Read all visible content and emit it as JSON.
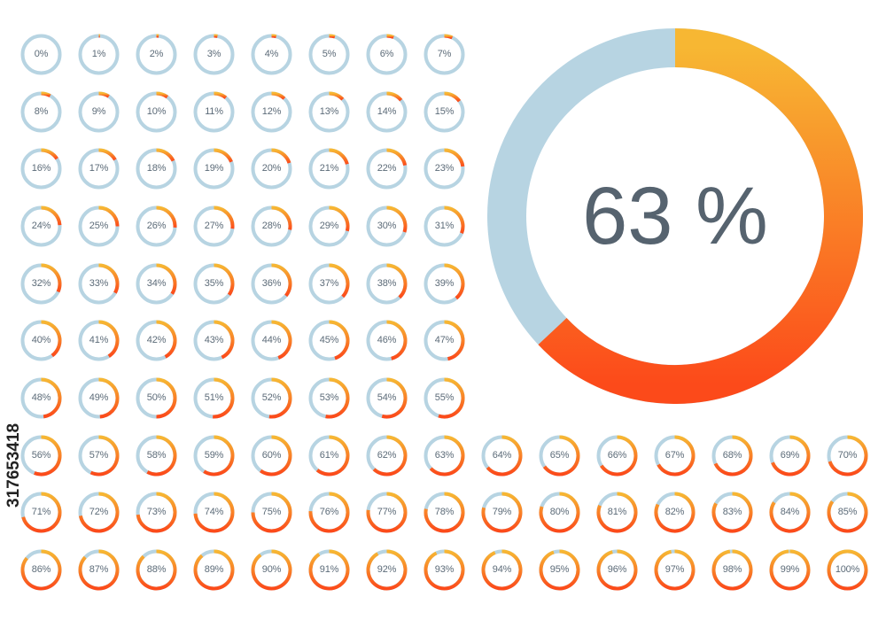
{
  "colors": {
    "track": "#b7d4e2",
    "progress_start": "#f7b733",
    "progress_end": "#fc4a1a",
    "text": "#5c6b78",
    "big_text": "#56636f"
  },
  "featured": {
    "value": 63,
    "label": "63 %"
  },
  "rings": [
    {
      "value": 0,
      "label": "0%"
    },
    {
      "value": 1,
      "label": "1%"
    },
    {
      "value": 2,
      "label": "2%"
    },
    {
      "value": 3,
      "label": "3%"
    },
    {
      "value": 4,
      "label": "4%"
    },
    {
      "value": 5,
      "label": "5%"
    },
    {
      "value": 6,
      "label": "6%"
    },
    {
      "value": 7,
      "label": "7%"
    },
    {
      "value": 8,
      "label": "8%"
    },
    {
      "value": 9,
      "label": "9%"
    },
    {
      "value": 10,
      "label": "10%"
    },
    {
      "value": 11,
      "label": "11%"
    },
    {
      "value": 12,
      "label": "12%"
    },
    {
      "value": 13,
      "label": "13%"
    },
    {
      "value": 14,
      "label": "14%"
    },
    {
      "value": 15,
      "label": "15%"
    },
    {
      "value": 16,
      "label": "16%"
    },
    {
      "value": 17,
      "label": "17%"
    },
    {
      "value": 18,
      "label": "18%"
    },
    {
      "value": 19,
      "label": "19%"
    },
    {
      "value": 20,
      "label": "20%"
    },
    {
      "value": 21,
      "label": "21%"
    },
    {
      "value": 22,
      "label": "22%"
    },
    {
      "value": 23,
      "label": "23%"
    },
    {
      "value": 24,
      "label": "24%"
    },
    {
      "value": 25,
      "label": "25%"
    },
    {
      "value": 26,
      "label": "26%"
    },
    {
      "value": 27,
      "label": "27%"
    },
    {
      "value": 28,
      "label": "28%"
    },
    {
      "value": 29,
      "label": "29%"
    },
    {
      "value": 30,
      "label": "30%"
    },
    {
      "value": 31,
      "label": "31%"
    },
    {
      "value": 32,
      "label": "32%"
    },
    {
      "value": 33,
      "label": "33%"
    },
    {
      "value": 34,
      "label": "34%"
    },
    {
      "value": 35,
      "label": "35%"
    },
    {
      "value": 36,
      "label": "36%"
    },
    {
      "value": 37,
      "label": "37%"
    },
    {
      "value": 38,
      "label": "38%"
    },
    {
      "value": 39,
      "label": "39%"
    },
    {
      "value": 40,
      "label": "40%"
    },
    {
      "value": 41,
      "label": "41%"
    },
    {
      "value": 42,
      "label": "42%"
    },
    {
      "value": 43,
      "label": "43%"
    },
    {
      "value": 44,
      "label": "44%"
    },
    {
      "value": 45,
      "label": "45%"
    },
    {
      "value": 46,
      "label": "46%"
    },
    {
      "value": 47,
      "label": "47%"
    },
    {
      "value": 48,
      "label": "48%"
    },
    {
      "value": 49,
      "label": "49%"
    },
    {
      "value": 50,
      "label": "50%"
    },
    {
      "value": 51,
      "label": "51%"
    },
    {
      "value": 52,
      "label": "52%"
    },
    {
      "value": 53,
      "label": "53%"
    },
    {
      "value": 54,
      "label": "54%"
    },
    {
      "value": 55,
      "label": "55%"
    },
    {
      "value": 56,
      "label": "56%"
    },
    {
      "value": 57,
      "label": "57%"
    },
    {
      "value": 58,
      "label": "58%"
    },
    {
      "value": 59,
      "label": "59%"
    },
    {
      "value": 60,
      "label": "60%"
    },
    {
      "value": 61,
      "label": "61%"
    },
    {
      "value": 62,
      "label": "62%"
    },
    {
      "value": 63,
      "label": "63%"
    },
    {
      "value": 64,
      "label": "64%"
    },
    {
      "value": 65,
      "label": "65%"
    },
    {
      "value": 66,
      "label": "66%"
    },
    {
      "value": 67,
      "label": "67%"
    },
    {
      "value": 68,
      "label": "68%"
    },
    {
      "value": 69,
      "label": "69%"
    },
    {
      "value": 70,
      "label": "70%"
    },
    {
      "value": 71,
      "label": "71%"
    },
    {
      "value": 72,
      "label": "72%"
    },
    {
      "value": 73,
      "label": "73%"
    },
    {
      "value": 74,
      "label": "74%"
    },
    {
      "value": 75,
      "label": "75%"
    },
    {
      "value": 76,
      "label": "76%"
    },
    {
      "value": 77,
      "label": "77%"
    },
    {
      "value": 78,
      "label": "78%"
    },
    {
      "value": 79,
      "label": "79%"
    },
    {
      "value": 80,
      "label": "80%"
    },
    {
      "value": 81,
      "label": "81%"
    },
    {
      "value": 82,
      "label": "82%"
    },
    {
      "value": 83,
      "label": "83%"
    },
    {
      "value": 84,
      "label": "84%"
    },
    {
      "value": 85,
      "label": "85%"
    },
    {
      "value": 86,
      "label": "86%"
    },
    {
      "value": 87,
      "label": "87%"
    },
    {
      "value": 88,
      "label": "88%"
    },
    {
      "value": 89,
      "label": "89%"
    },
    {
      "value": 90,
      "label": "90%"
    },
    {
      "value": 91,
      "label": "91%"
    },
    {
      "value": 92,
      "label": "92%"
    },
    {
      "value": 93,
      "label": "93%"
    },
    {
      "value": 94,
      "label": "94%"
    },
    {
      "value": 95,
      "label": "95%"
    },
    {
      "value": 96,
      "label": "96%"
    },
    {
      "value": 97,
      "label": "97%"
    },
    {
      "value": 98,
      "label": "98%"
    },
    {
      "value": 99,
      "label": "99%"
    },
    {
      "value": 100,
      "label": "100%"
    }
  ],
  "watermark": {
    "id_text": "317653418"
  }
}
